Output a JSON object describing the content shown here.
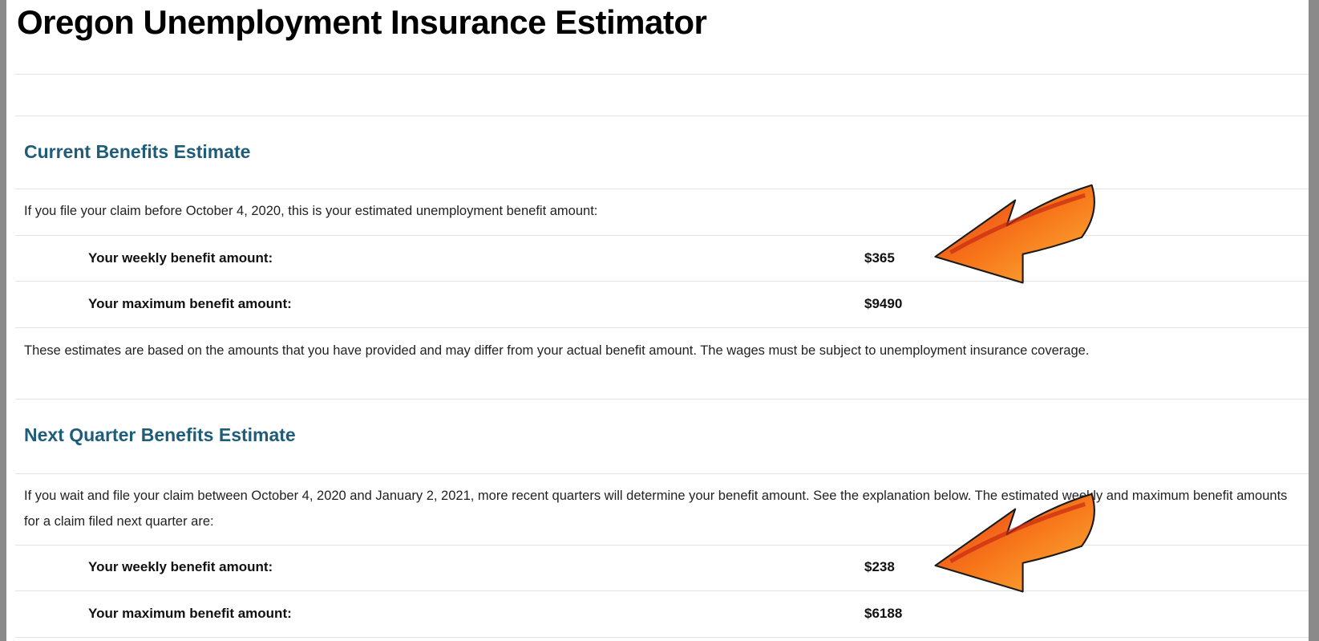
{
  "title": "Oregon Unemployment Insurance Estimator",
  "sections": [
    {
      "heading": "Current Benefits Estimate",
      "intro": "If you file your claim before October 4, 2020, this is your estimated unemployment benefit amount:",
      "rows": [
        {
          "label": "Your weekly benefit amount:",
          "value": "$365"
        },
        {
          "label": "Your maximum benefit amount:",
          "value": "$9490"
        }
      ],
      "note": "These estimates are based on the amounts that you have provided and may differ from your actual benefit amount. The wages must be subject to unemployment insurance coverage."
    },
    {
      "heading": "Next Quarter Benefits Estimate",
      "intro": "If you wait and file your claim between October 4, 2020 and January 2, 2021, more recent quarters will determine your benefit amount. See the explanation below. The estimated weekly and maximum benefit amounts for a claim filed next quarter are:",
      "rows": [
        {
          "label": "Your weekly benefit amount:",
          "value": "$238"
        },
        {
          "label": "Your maximum benefit amount:",
          "value": "$6188"
        }
      ]
    }
  ]
}
